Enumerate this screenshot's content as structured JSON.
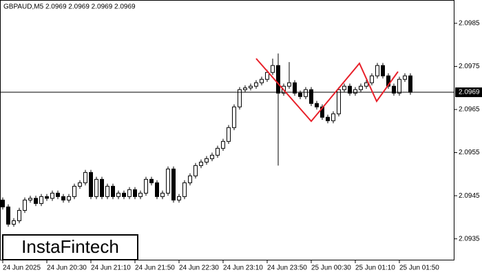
{
  "chart_data": {
    "type": "candlestick",
    "header": "GBPAUD,M5  2.0969 2.0969 2.0969 2.0969",
    "logo": "InstaFintech",
    "categories": [
      "24 Jun 2025",
      null,
      null,
      null,
      null,
      null,
      null,
      null,
      "24 Jun 20:30",
      null,
      null,
      null,
      null,
      null,
      null,
      null,
      "24 Jun 21:10",
      null,
      null,
      null,
      null,
      null,
      null,
      null,
      "24 Jun 21:50",
      null,
      null,
      null,
      null,
      null,
      null,
      null,
      "24 Jun 22:30",
      null,
      null,
      null,
      null,
      null,
      null,
      null,
      "24 Jun 23:10",
      null,
      null,
      null,
      null,
      null,
      null,
      null,
      "24 Jun 23:50",
      null,
      null,
      null,
      null,
      null,
      null,
      null,
      "25 Jun 00:30",
      null,
      null,
      null,
      null,
      null,
      null,
      null,
      "25 Jun 01:10",
      null,
      null,
      null,
      null,
      null,
      null,
      null,
      "25 Jun 01:50",
      null,
      null
    ],
    "open": [
      2.0944,
      2.09424,
      2.09384,
      2.09392,
      2.09416,
      2.0944,
      2.09444,
      2.09432,
      2.09448,
      2.09444,
      2.09456,
      2.09448,
      2.0944,
      2.09448,
      2.09472,
      2.0948,
      2.09504,
      2.09448,
      2.09488,
      2.09448,
      2.09472,
      2.09448,
      2.09456,
      2.09448,
      2.09464,
      2.09448,
      2.09456,
      2.09488,
      2.0948,
      2.09448,
      2.09456,
      2.09512,
      2.0944,
      2.09448,
      2.0948,
      2.09496,
      2.0952,
      2.09528,
      2.09536,
      2.09544,
      2.0956,
      2.09576,
      2.09608,
      2.09656,
      2.09696,
      2.097,
      2.09704,
      2.09712,
      2.0972,
      2.09736,
      2.09752,
      2.09688,
      2.09704,
      2.09712,
      2.09688,
      2.0968,
      2.09696,
      2.09664,
      2.09656,
      2.09632,
      2.09624,
      2.0964,
      2.09696,
      2.09704,
      2.09688,
      2.09696,
      2.09704,
      2.09712,
      2.09728,
      2.09752,
      2.09728,
      2.09704,
      2.09688,
      2.0972,
      2.09728
    ],
    "high": [
      2.09446,
      2.0943,
      2.09398,
      2.09422,
      2.09446,
      2.0945,
      2.0945,
      2.09454,
      2.09454,
      2.09462,
      2.09462,
      2.09454,
      2.09454,
      2.09478,
      2.09486,
      2.0951,
      2.0951,
      2.09494,
      2.09494,
      2.09478,
      2.09478,
      2.09462,
      2.09462,
      2.0947,
      2.0947,
      2.09462,
      2.09494,
      2.09494,
      2.09486,
      2.09462,
      2.09518,
      2.09518,
      2.09454,
      2.09486,
      2.09502,
      2.09526,
      2.09534,
      2.09542,
      2.0955,
      2.09566,
      2.09582,
      2.09614,
      2.09662,
      2.09702,
      2.09706,
      2.0971,
      2.09718,
      2.09726,
      2.09742,
      2.09768,
      2.0978,
      2.0971,
      2.0976,
      2.09718,
      2.09694,
      2.09702,
      2.09702,
      2.0967,
      2.09662,
      2.09638,
      2.09646,
      2.09702,
      2.0971,
      2.0971,
      2.09702,
      2.0971,
      2.09718,
      2.09734,
      2.09758,
      2.09758,
      2.09734,
      2.0971,
      2.09726,
      2.09734,
      2.09734
    ],
    "low": [
      2.09418,
      2.09378,
      2.09378,
      2.09386,
      2.0941,
      2.09434,
      2.09426,
      2.09426,
      2.09438,
      2.09438,
      2.09442,
      2.09434,
      2.09434,
      2.09442,
      2.09466,
      2.09474,
      2.09442,
      2.09442,
      2.09442,
      2.09442,
      2.09442,
      2.09442,
      2.09442,
      2.09442,
      2.09442,
      2.09442,
      2.0945,
      2.09474,
      2.09442,
      2.09442,
      2.0945,
      2.09434,
      2.09434,
      2.09442,
      2.09474,
      2.0949,
      2.09514,
      2.09522,
      2.0953,
      2.09538,
      2.09554,
      2.0957,
      2.09602,
      2.0965,
      2.0969,
      2.09694,
      2.09698,
      2.09706,
      2.09714,
      2.0973,
      2.0952,
      2.09682,
      2.09698,
      2.09682,
      2.09674,
      2.09674,
      2.09658,
      2.0965,
      2.09626,
      2.09618,
      2.09618,
      2.09634,
      2.0969,
      2.09682,
      2.09682,
      2.0969,
      2.09698,
      2.09706,
      2.09722,
      2.09722,
      2.09698,
      2.09682,
      2.09682,
      2.09714,
      2.09684
    ],
    "close": [
      2.09424,
      2.09384,
      2.09392,
      2.09416,
      2.0944,
      2.09444,
      2.09432,
      2.09448,
      2.09444,
      2.09456,
      2.09448,
      2.0944,
      2.09448,
      2.09472,
      2.0948,
      2.09504,
      2.09448,
      2.09488,
      2.09448,
      2.09472,
      2.09448,
      2.09456,
      2.09448,
      2.09464,
      2.09448,
      2.09456,
      2.09488,
      2.0948,
      2.09448,
      2.09456,
      2.09512,
      2.0944,
      2.09448,
      2.0948,
      2.09496,
      2.0952,
      2.09528,
      2.09536,
      2.09544,
      2.0956,
      2.09576,
      2.09608,
      2.09656,
      2.09696,
      2.097,
      2.09704,
      2.09712,
      2.0972,
      2.09736,
      2.09752,
      2.09688,
      2.09704,
      2.09712,
      2.09688,
      2.0968,
      2.09696,
      2.09664,
      2.09656,
      2.09632,
      2.09624,
      2.0964,
      2.09696,
      2.09704,
      2.09688,
      2.09696,
      2.09704,
      2.09712,
      2.09728,
      2.09752,
      2.09728,
      2.09704,
      2.09688,
      2.0972,
      2.09728,
      2.0969
    ],
    "current_price": 2.0969,
    "ylim": [
      2.093,
      2.09904
    ],
    "yticks": [
      2.0935,
      2.0945,
      2.0955,
      2.0965,
      2.0975,
      2.0985
    ]
  }
}
